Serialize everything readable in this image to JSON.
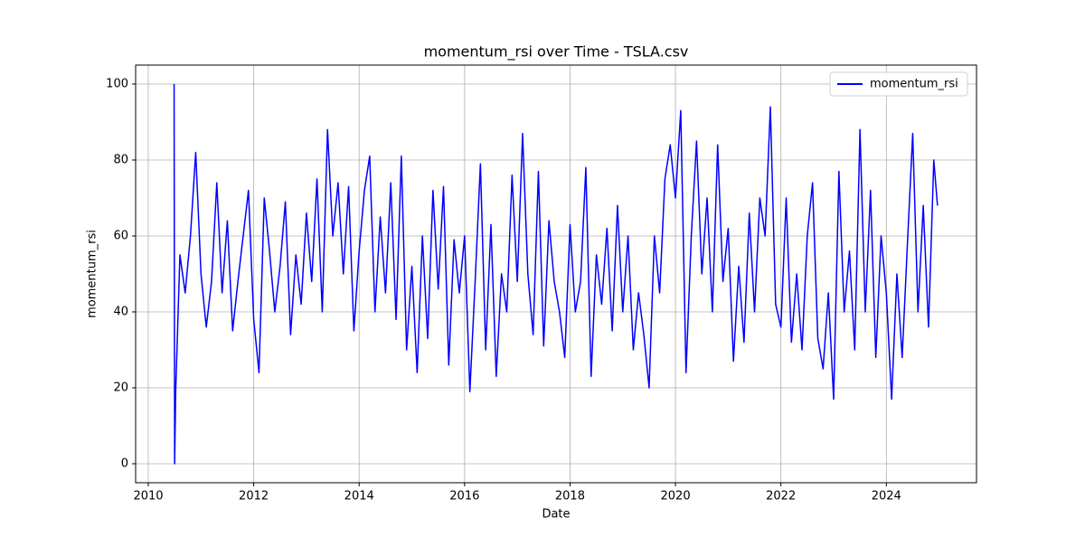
{
  "chart_data": {
    "type": "line",
    "title": "momentum_rsi over Time - TSLA.csv",
    "xlabel": "Date",
    "ylabel": "momentum_rsi",
    "x": [
      2010.49,
      2010.5,
      2010.52,
      2010.6,
      2010.7,
      2010.8,
      2010.9,
      2011.0,
      2011.1,
      2011.2,
      2011.3,
      2011.4,
      2011.5,
      2011.6,
      2011.7,
      2011.8,
      2011.9,
      2012.0,
      2012.1,
      2012.2,
      2012.3,
      2012.4,
      2012.5,
      2012.6,
      2012.7,
      2012.8,
      2012.9,
      2013.0,
      2013.1,
      2013.2,
      2013.3,
      2013.4,
      2013.5,
      2013.6,
      2013.7,
      2013.8,
      2013.9,
      2014.0,
      2014.1,
      2014.2,
      2014.3,
      2014.4,
      2014.5,
      2014.6,
      2014.7,
      2014.8,
      2014.9,
      2015.0,
      2015.1,
      2015.2,
      2015.3,
      2015.4,
      2015.5,
      2015.6,
      2015.7,
      2015.8,
      2015.9,
      2016.0,
      2016.1,
      2016.2,
      2016.3,
      2016.4,
      2016.5,
      2016.6,
      2016.7,
      2016.8,
      2016.9,
      2017.0,
      2017.1,
      2017.2,
      2017.3,
      2017.4,
      2017.5,
      2017.6,
      2017.7,
      2017.8,
      2017.9,
      2018.0,
      2018.1,
      2018.2,
      2018.3,
      2018.4,
      2018.5,
      2018.6,
      2018.7,
      2018.8,
      2018.9,
      2019.0,
      2019.1,
      2019.2,
      2019.3,
      2019.4,
      2019.5,
      2019.6,
      2019.7,
      2019.8,
      2019.9,
      2020.0,
      2020.1,
      2020.2,
      2020.3,
      2020.4,
      2020.5,
      2020.6,
      2020.7,
      2020.8,
      2020.9,
      2021.0,
      2021.1,
      2021.2,
      2021.3,
      2021.4,
      2021.5,
      2021.6,
      2021.7,
      2021.8,
      2021.9,
      2022.0,
      2022.1,
      2022.2,
      2022.3,
      2022.4,
      2022.5,
      2022.6,
      2022.7,
      2022.8,
      2022.9,
      2023.0,
      2023.1,
      2023.2,
      2023.3,
      2023.4,
      2023.5,
      2023.6,
      2023.7,
      2023.8,
      2023.9,
      2024.0,
      2024.1,
      2024.2,
      2024.3,
      2024.4,
      2024.5,
      2024.6,
      2024.7,
      2024.8,
      2024.9,
      2024.97
    ],
    "series": [
      {
        "name": "momentum_rsi",
        "color": "#0000ff",
        "values": [
          100,
          0,
          19,
          55,
          45,
          60,
          82,
          50,
          36,
          48,
          74,
          45,
          64,
          35,
          48,
          60,
          72,
          38,
          24,
          70,
          56,
          40,
          52,
          69,
          34,
          55,
          42,
          66,
          48,
          75,
          40,
          88,
          60,
          74,
          50,
          73,
          35,
          56,
          72,
          81,
          40,
          65,
          45,
          74,
          38,
          81,
          30,
          52,
          24,
          60,
          33,
          72,
          46,
          73,
          26,
          59,
          45,
          60,
          19,
          48,
          79,
          30,
          63,
          23,
          50,
          40,
          76,
          48,
          87,
          50,
          34,
          77,
          31,
          64,
          48,
          40,
          28,
          63,
          40,
          48,
          78,
          23,
          55,
          42,
          62,
          35,
          68,
          40,
          60,
          30,
          45,
          34,
          20,
          60,
          45,
          75,
          84,
          70,
          93,
          24,
          60,
          85,
          50,
          70,
          40,
          84,
          48,
          62,
          27,
          52,
          32,
          66,
          40,
          70,
          60,
          94,
          42,
          36,
          70,
          32,
          50,
          30,
          60,
          74,
          33,
          25,
          45,
          17,
          77,
          40,
          56,
          30,
          88,
          40,
          72,
          28,
          60,
          45,
          17,
          50,
          28,
          58,
          87,
          40,
          68,
          36,
          80,
          68
        ]
      }
    ],
    "xlim": [
      2009.76,
      2025.71
    ],
    "ylim": [
      -5,
      105
    ],
    "xticks": [
      2010,
      2012,
      2014,
      2016,
      2018,
      2020,
      2022,
      2024
    ],
    "yticks": [
      0,
      20,
      40,
      60,
      80,
      100
    ],
    "grid": true,
    "legend": "upper-right"
  }
}
